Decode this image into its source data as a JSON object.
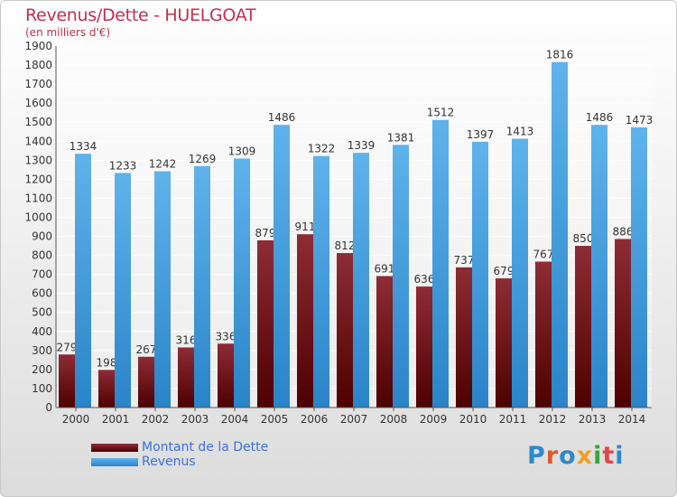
{
  "header": {
    "title": "Revenus/Dette - HUELGOAT",
    "subtitle": "(en milliers d'€)"
  },
  "colors": {
    "debt": "#7a1e2a",
    "revenue": "#2e9ae6",
    "title": "#c0304e",
    "legend_text": "#3d6fe0"
  },
  "chart_data": {
    "type": "bar",
    "categories": [
      "2000",
      "2001",
      "2002",
      "2003",
      "2004",
      "2005",
      "2006",
      "2007",
      "2008",
      "2009",
      "2010",
      "2011",
      "2012",
      "2013",
      "2014"
    ],
    "series": [
      {
        "name": "Montant de la Dette",
        "values": [
          279,
          198,
          267,
          316,
          336,
          879,
          911,
          812,
          691,
          636,
          737,
          679,
          767,
          850,
          886
        ]
      },
      {
        "name": "Revenus",
        "values": [
          1334,
          1233,
          1242,
          1269,
          1309,
          1486,
          1322,
          1339,
          1381,
          1512,
          1397,
          1413,
          1816,
          1486,
          1473
        ]
      }
    ],
    "yticks": [
      0,
      100,
      200,
      300,
      400,
      500,
      600,
      700,
      800,
      900,
      1000,
      1100,
      1200,
      1300,
      1400,
      1500,
      1600,
      1700,
      1800,
      1900
    ],
    "ylim": [
      0,
      1900
    ],
    "grid": true,
    "legend_position": "bottom-left"
  },
  "legend": {
    "items": [
      {
        "label": "Montant de la Dette"
      },
      {
        "label": "Revenus"
      }
    ]
  },
  "logo": {
    "text": "Proxiti"
  }
}
